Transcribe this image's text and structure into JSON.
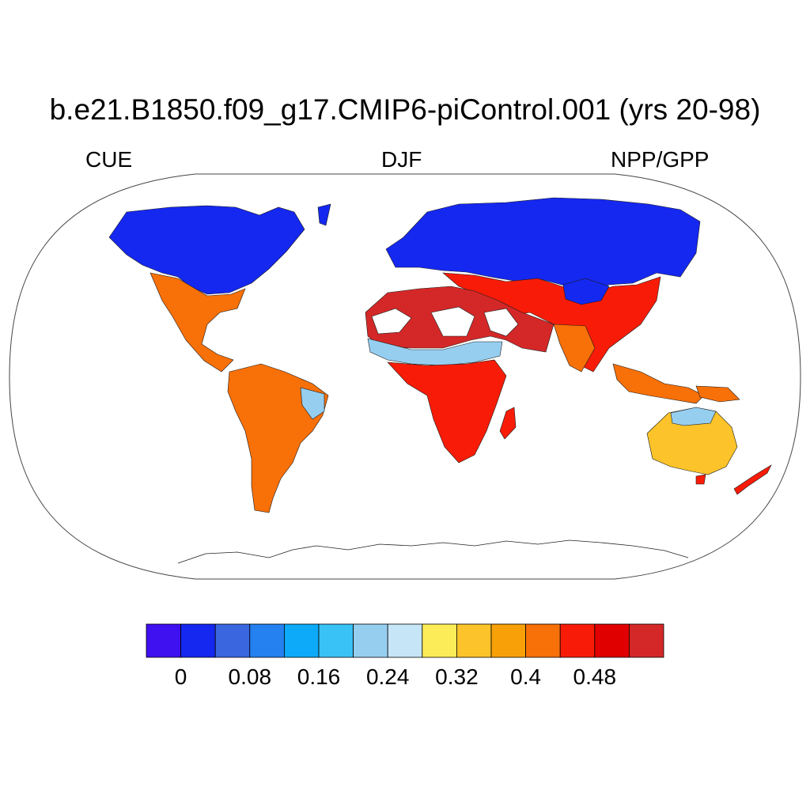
{
  "title": "b.e21.B1850.f09_g17.CMIP6-piControl.001 (yrs 20-98)",
  "subtitle_left": "CUE",
  "subtitle_center": "DJF",
  "subtitle_right": "NPP/GPP",
  "colorbar": {
    "colors": [
      "#3f10f0",
      "#1528f0",
      "#3a66e0",
      "#2580f0",
      "#0caaf8",
      "#38c2f6",
      "#96cef0",
      "#c6e6f8",
      "#fcec58",
      "#fcc42a",
      "#f8a008",
      "#f87008",
      "#f81c08",
      "#e00000",
      "#d42828"
    ],
    "tick_labels": [
      "0",
      "0.08",
      "0.16",
      "0.24",
      "0.32",
      "0.4",
      "0.48"
    ],
    "tick_values": [
      0,
      0.08,
      0.16,
      0.24,
      0.32,
      0.4,
      0.48
    ],
    "levels": [
      0,
      0.04,
      0.08,
      0.12,
      0.16,
      0.2,
      0.24,
      0.28,
      0.32,
      0.36,
      0.4,
      0.44,
      0.48,
      0.52
    ]
  },
  "map": {
    "projection": "robinson",
    "field_colors": {
      "boreal": "#1528f0",
      "temperate": "#f87008",
      "tropical": "#f81c08",
      "arid": "#d42828",
      "transition": "#fcc42a",
      "cool": "#96cef0",
      "missing": "#ffffff"
    }
  }
}
